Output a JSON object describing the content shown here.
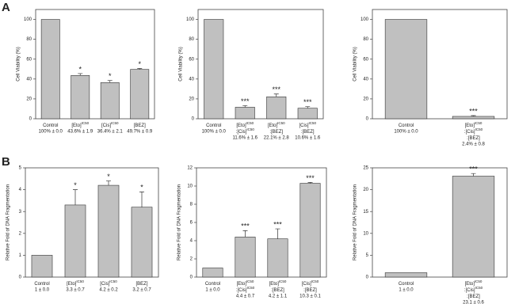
{
  "panels": [
    "A",
    "B"
  ],
  "chart_data": [
    {
      "type": "bar",
      "ylabel": "Cell Viability (%)",
      "ylim": [
        0,
        110
      ],
      "yticks": [
        0,
        20,
        40,
        60,
        80,
        100
      ],
      "color": "#c0c0c0",
      "categories": [
        [
          {
            "text": "Control"
          }
        ],
        [
          {
            "text": "[Eto]",
            "sup": "IC50"
          }
        ],
        [
          {
            "text": "[Cis]",
            "sup": "IC50"
          }
        ],
        [
          {
            "text": "[BEZ]"
          }
        ]
      ],
      "values": [
        100,
        43.6,
        36.4,
        49.7
      ],
      "errors": [
        0,
        1.9,
        2.1,
        0.9
      ],
      "value_labels": [
        "100% ± 0.0",
        "43.6% ± 1.9",
        "36.4% ± 2.1",
        "49.7% ± 0.9"
      ],
      "annotations": [
        null,
        "*",
        "*",
        "*"
      ]
    },
    {
      "type": "bar",
      "ylabel": "Cell Viability (%)",
      "ylim": [
        0,
        110
      ],
      "yticks": [
        0,
        20,
        40,
        60,
        80,
        100
      ],
      "color": "#c0c0c0",
      "categories": [
        [
          {
            "text": "Control"
          }
        ],
        [
          {
            "text": "[Eto]",
            "sup": "IC50"
          },
          {
            "text": ":[Cis]",
            "sup": "IC50"
          }
        ],
        [
          {
            "text": "[Eto]",
            "sup": "IC50"
          },
          {
            "text": ":[BEZ]"
          }
        ],
        [
          {
            "text": "[Cis]",
            "sup": "IC50"
          },
          {
            "text": ":[BEZ]"
          }
        ]
      ],
      "values": [
        100,
        11.6,
        22.1,
        10.6
      ],
      "errors": [
        0,
        1.6,
        2.8,
        1.6
      ],
      "value_labels": [
        "100% ± 0.0",
        "11.6% ± 1.6",
        "22.1% ± 2.8",
        "10.6% ± 1.6"
      ],
      "annotations": [
        null,
        "***",
        "***",
        "***"
      ]
    },
    {
      "type": "bar",
      "ylabel": "Cell Viability (%)",
      "ylim": [
        0,
        110
      ],
      "yticks": [
        0,
        20,
        40,
        60,
        80,
        100
      ],
      "color": "#c0c0c0",
      "categories": [
        [
          {
            "text": "Control"
          }
        ],
        [
          {
            "text": "[Eto]",
            "sup": "IC50"
          },
          {
            "text": ":[Cis]",
            "sup": "IC50"
          },
          {
            "text": ":[BEZ]"
          }
        ]
      ],
      "values": [
        100,
        2.4
      ],
      "errors": [
        0,
        0.8
      ],
      "value_labels": [
        "100% ± 0.0",
        "2.4% ± 0.8"
      ],
      "annotations": [
        null,
        "***"
      ]
    },
    {
      "type": "bar",
      "ylabel": "Relative Fold of DNA Fragmentation",
      "ylim": [
        0,
        5
      ],
      "yticks": [
        0,
        1,
        2,
        3,
        4,
        5
      ],
      "color": "#c0c0c0",
      "categories": [
        [
          {
            "text": "Control"
          }
        ],
        [
          {
            "text": "[Eto]",
            "sup": "IC50"
          }
        ],
        [
          {
            "text": "[Cis]",
            "sup": "IC50"
          }
        ],
        [
          {
            "text": "[BEZ]"
          }
        ]
      ],
      "values": [
        1,
        3.3,
        4.2,
        3.2
      ],
      "errors": [
        0,
        0.7,
        0.2,
        0.7
      ],
      "value_labels": [
        "1 ± 0.0",
        "3.3 ± 0.7",
        "4.2 ± 0.2",
        "3.2 ± 0.7"
      ],
      "annotations": [
        null,
        "*",
        "*",
        "*"
      ]
    },
    {
      "type": "bar",
      "ylabel": "Relative Fold of DNA Fragmentation",
      "ylim": [
        0,
        12
      ],
      "yticks": [
        0,
        2,
        4,
        6,
        8,
        10,
        12
      ],
      "color": "#c0c0c0",
      "categories": [
        [
          {
            "text": "Control"
          }
        ],
        [
          {
            "text": "[Eto]",
            "sup": "IC50"
          },
          {
            "text": ":[Cis]",
            "sup": "IC50"
          }
        ],
        [
          {
            "text": "[Eto]",
            "sup": "IC50"
          },
          {
            "text": ":[BEZ]"
          }
        ],
        [
          {
            "text": "[Cis]",
            "sup": "IC50"
          },
          {
            "text": ":[BEZ]"
          }
        ]
      ],
      "values": [
        1,
        4.4,
        4.2,
        10.3
      ],
      "errors": [
        0,
        0.7,
        1.1,
        0.1
      ],
      "value_labels": [
        "1 ± 0.0",
        "4.4 ± 0.7",
        "4.2 ± 1.1",
        "10.3 ± 0.1"
      ],
      "annotations": [
        null,
        "***",
        "***",
        "***"
      ]
    },
    {
      "type": "bar",
      "ylabel": "Relative Fold of DNA Fragmentation",
      "ylim": [
        0,
        25
      ],
      "yticks": [
        0,
        5,
        10,
        15,
        20,
        25
      ],
      "color": "#c0c0c0",
      "categories": [
        [
          {
            "text": "Control"
          }
        ],
        [
          {
            "text": "[Eto]",
            "sup": "IC50"
          },
          {
            "text": ":[Cis]",
            "sup": "IC50"
          },
          {
            "text": ":[BEZ]"
          }
        ]
      ],
      "values": [
        1,
        23.1
      ],
      "errors": [
        0,
        0.6
      ],
      "value_labels": [
        "1 ± 0.0",
        "23.1 ± 0.6"
      ],
      "annotations": [
        null,
        "***"
      ]
    }
  ]
}
